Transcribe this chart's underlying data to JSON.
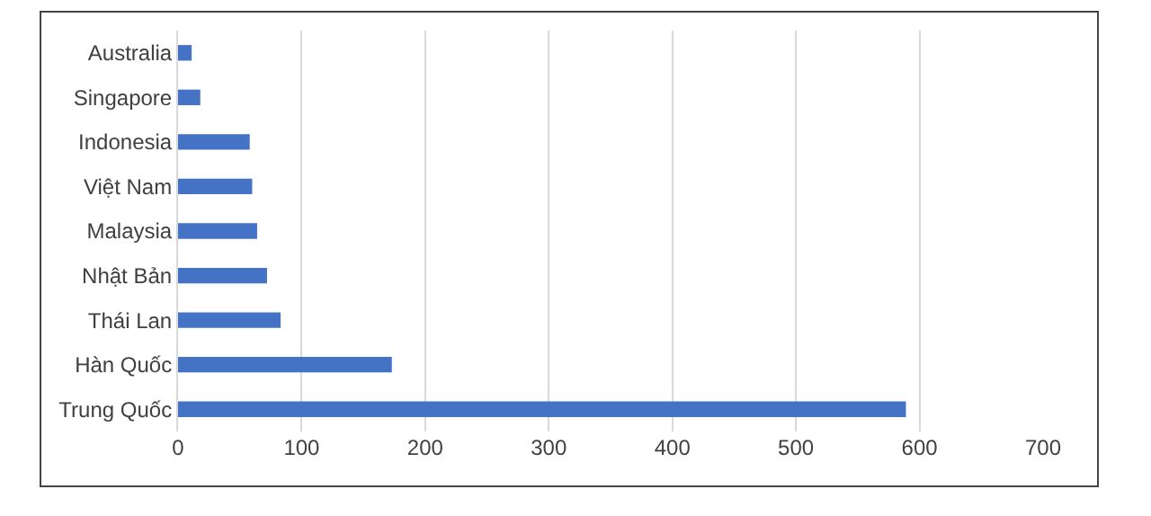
{
  "chart_data": {
    "type": "bar",
    "orientation": "horizontal",
    "categories": [
      "Australia",
      "Singapore",
      "Indonesia",
      "Việt Nam",
      "Malaysia",
      "Nhật Bản",
      "Thái Lan",
      "Hàn Quốc",
      "Trung Quốc"
    ],
    "values": [
      11,
      18,
      58,
      60,
      64,
      72,
      83,
      173,
      589
    ],
    "color": "#4472c4",
    "xlim": [
      0,
      700
    ],
    "xticks": [
      0,
      100,
      200,
      300,
      400,
      500,
      600,
      700
    ],
    "grid": "x",
    "legend": false
  }
}
